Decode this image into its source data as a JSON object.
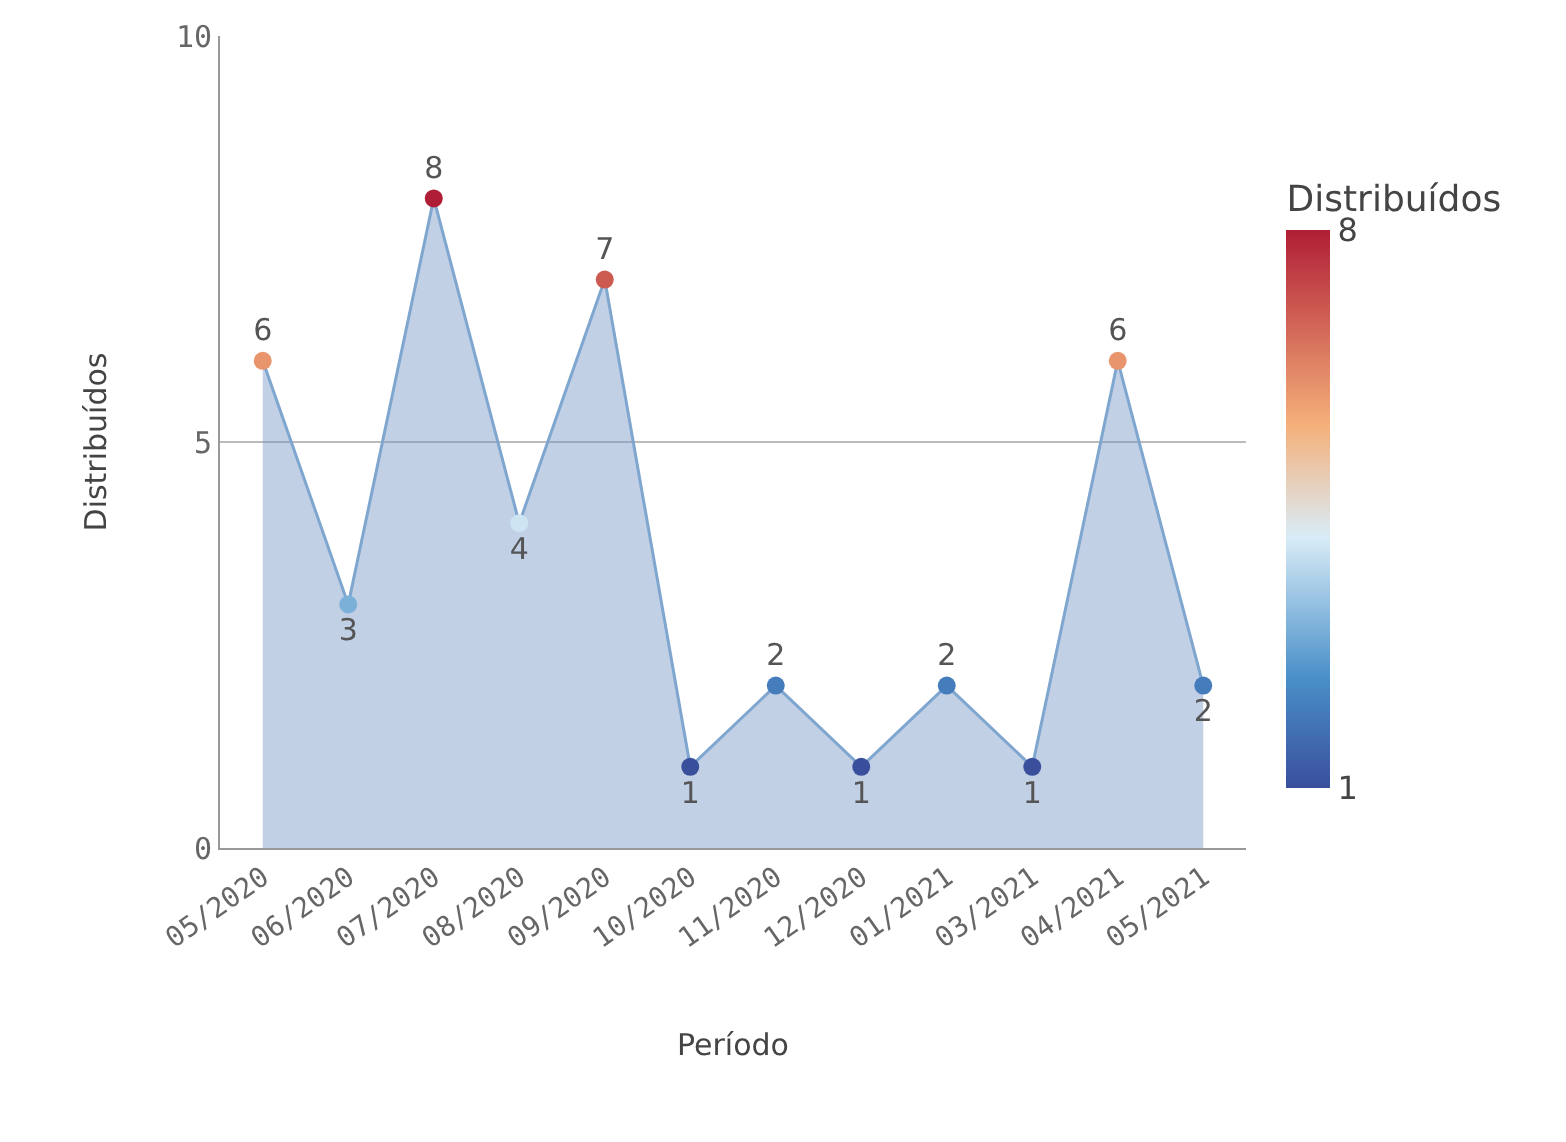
{
  "chart_data": {
    "type": "area",
    "xlabel": "Período",
    "ylabel": "Distribuídos",
    "clabel": "Distribuídos",
    "categories": [
      "05/2020",
      "06/2020",
      "07/2020",
      "08/2020",
      "09/2020",
      "10/2020",
      "11/2020",
      "12/2020",
      "01/2021",
      "03/2021",
      "04/2021",
      "05/2021"
    ],
    "values": [
      6,
      3,
      8,
      4,
      7,
      1,
      2,
      1,
      2,
      1,
      6,
      2
    ],
    "clim": [
      1,
      8
    ],
    "cticks": [
      1,
      8
    ],
    "ylim": [
      0,
      10
    ],
    "yticks": [
      0,
      5,
      10
    ],
    "grid": "y",
    "marker": "circle",
    "data_labels": true
  }
}
